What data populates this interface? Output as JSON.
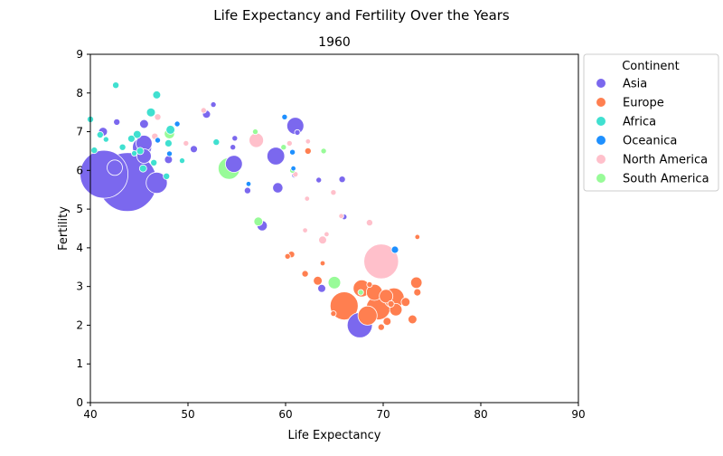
{
  "chart_data": {
    "type": "scatter",
    "title": "Life Expectancy and Fertility Over the Years",
    "subtitle": "1960",
    "xlabel": "Life Expectancy",
    "ylabel": "Fertility",
    "xlim": [
      40,
      90
    ],
    "ylim": [
      0,
      9
    ],
    "x_ticks": [
      "40",
      "50",
      "60",
      "70",
      "80",
      "90"
    ],
    "y_ticks": [
      "0",
      "1",
      "2",
      "3",
      "4",
      "5",
      "6",
      "7",
      "8",
      "9"
    ],
    "grid": false,
    "legend": {
      "title": "Continent",
      "placement": "outside-right",
      "entries": [
        {
          "name": "Asia",
          "color": "#7B68EE"
        },
        {
          "name": "Europe",
          "color": "#FF7F50"
        },
        {
          "name": "Africa",
          "color": "#40E0D0"
        },
        {
          "name": "Oceanica",
          "color": "#1E90FF"
        },
        {
          "name": "North America",
          "color": "#FFC0CB"
        },
        {
          "name": "South America",
          "color": "#98FB98"
        }
      ]
    },
    "series": [
      {
        "name": "Asia",
        "color": "#7B68EE",
        "points": [
          {
            "x": 43.8,
            "y": 5.7,
            "size": 660
          },
          {
            "x": 41.4,
            "y": 5.9,
            "size": 440
          },
          {
            "x": 42.5,
            "y": 6.07,
            "size": 45
          },
          {
            "x": 45.3,
            "y": 6.6,
            "size": 70
          },
          {
            "x": 45.5,
            "y": 6.7,
            "size": 50
          },
          {
            "x": 45.5,
            "y": 6.37,
            "size": 40
          },
          {
            "x": 46.8,
            "y": 5.68,
            "size": 85
          },
          {
            "x": 48.0,
            "y": 6.28,
            "size": 12
          },
          {
            "x": 54.7,
            "y": 6.17,
            "size": 55
          },
          {
            "x": 59.0,
            "y": 6.37,
            "size": 60
          },
          {
            "x": 61.0,
            "y": 7.15,
            "size": 55
          },
          {
            "x": 59.2,
            "y": 5.55,
            "size": 20
          },
          {
            "x": 57.6,
            "y": 4.57,
            "size": 20
          },
          {
            "x": 67.6,
            "y": 2.0,
            "size": 120
          },
          {
            "x": 63.7,
            "y": 2.95,
            "size": 12
          },
          {
            "x": 41.3,
            "y": 7.0,
            "size": 15
          },
          {
            "x": 42.7,
            "y": 7.25,
            "size": 8
          },
          {
            "x": 45.5,
            "y": 7.2,
            "size": 15
          },
          {
            "x": 51.9,
            "y": 7.45,
            "size": 12
          },
          {
            "x": 52.6,
            "y": 7.7,
            "size": 6
          },
          {
            "x": 50.6,
            "y": 6.55,
            "size": 10
          },
          {
            "x": 54.8,
            "y": 6.83,
            "size": 6
          },
          {
            "x": 56.1,
            "y": 5.48,
            "size": 8
          },
          {
            "x": 66.0,
            "y": 4.8,
            "size": 6
          },
          {
            "x": 63.4,
            "y": 5.75,
            "size": 6
          },
          {
            "x": 65.8,
            "y": 5.77,
            "size": 8
          },
          {
            "x": 60.9,
            "y": 5.88,
            "size": 6
          },
          {
            "x": 54.6,
            "y": 6.6,
            "size": 6
          },
          {
            "x": 61.2,
            "y": 6.98,
            "size": 6
          }
        ]
      },
      {
        "name": "Europe",
        "color": "#FF7F50",
        "points": [
          {
            "x": 66.0,
            "y": 2.5,
            "size": 150
          },
          {
            "x": 69.5,
            "y": 2.45,
            "size": 110
          },
          {
            "x": 71.1,
            "y": 2.7,
            "size": 80
          },
          {
            "x": 68.4,
            "y": 2.25,
            "size": 70
          },
          {
            "x": 67.8,
            "y": 2.95,
            "size": 55
          },
          {
            "x": 69.1,
            "y": 2.85,
            "size": 50
          },
          {
            "x": 70.3,
            "y": 2.75,
            "size": 35
          },
          {
            "x": 73.4,
            "y": 3.1,
            "size": 25
          },
          {
            "x": 71.3,
            "y": 2.4,
            "size": 30
          },
          {
            "x": 72.3,
            "y": 2.6,
            "size": 15
          },
          {
            "x": 73.0,
            "y": 2.15,
            "size": 15
          },
          {
            "x": 70.4,
            "y": 2.1,
            "size": 12
          },
          {
            "x": 69.8,
            "y": 1.95,
            "size": 8
          },
          {
            "x": 73.5,
            "y": 2.85,
            "size": 10
          },
          {
            "x": 63.3,
            "y": 3.15,
            "size": 15
          },
          {
            "x": 62.0,
            "y": 3.33,
            "size": 8
          },
          {
            "x": 60.6,
            "y": 3.83,
            "size": 8
          },
          {
            "x": 60.2,
            "y": 3.78,
            "size": 6
          },
          {
            "x": 63.8,
            "y": 3.6,
            "size": 5
          },
          {
            "x": 73.5,
            "y": 4.28,
            "size": 5
          },
          {
            "x": 62.3,
            "y": 6.5,
            "size": 8
          },
          {
            "x": 64.9,
            "y": 2.3,
            "size": 6
          },
          {
            "x": 68.6,
            "y": 3.05,
            "size": 6
          },
          {
            "x": 70.8,
            "y": 2.55,
            "size": 8
          }
        ]
      },
      {
        "name": "Africa",
        "color": "#40E0D0",
        "points": [
          {
            "x": 42.6,
            "y": 8.2,
            "size": 8
          },
          {
            "x": 46.8,
            "y": 7.95,
            "size": 12
          },
          {
            "x": 46.2,
            "y": 7.5,
            "size": 15
          },
          {
            "x": 48.2,
            "y": 7.05,
            "size": 15
          },
          {
            "x": 40.0,
            "y": 7.32,
            "size": 8
          },
          {
            "x": 41.0,
            "y": 6.92,
            "size": 8
          },
          {
            "x": 44.2,
            "y": 6.82,
            "size": 10
          },
          {
            "x": 44.8,
            "y": 6.93,
            "size": 12
          },
          {
            "x": 45.1,
            "y": 6.5,
            "size": 10
          },
          {
            "x": 48.0,
            "y": 6.7,
            "size": 10
          },
          {
            "x": 45.4,
            "y": 6.05,
            "size": 10
          },
          {
            "x": 46.5,
            "y": 6.2,
            "size": 8
          },
          {
            "x": 43.3,
            "y": 6.6,
            "size": 8
          },
          {
            "x": 40.4,
            "y": 6.52,
            "size": 8
          },
          {
            "x": 47.8,
            "y": 5.85,
            "size": 8
          },
          {
            "x": 49.4,
            "y": 6.25,
            "size": 6
          },
          {
            "x": 52.9,
            "y": 6.73,
            "size": 8
          },
          {
            "x": 41.6,
            "y": 6.8,
            "size": 6
          },
          {
            "x": 44.5,
            "y": 6.44,
            "size": 6
          }
        ]
      },
      {
        "name": "Oceanica",
        "color": "#1E90FF",
        "points": [
          {
            "x": 71.2,
            "y": 3.95,
            "size": 10
          },
          {
            "x": 48.9,
            "y": 7.2,
            "size": 6
          },
          {
            "x": 46.9,
            "y": 6.78,
            "size": 6
          },
          {
            "x": 59.9,
            "y": 7.38,
            "size": 6
          },
          {
            "x": 60.7,
            "y": 6.47,
            "size": 6
          },
          {
            "x": 60.8,
            "y": 6.05,
            "size": 5
          },
          {
            "x": 56.2,
            "y": 5.65,
            "size": 5
          },
          {
            "x": 48.1,
            "y": 6.43,
            "size": 6
          }
        ]
      },
      {
        "name": "North America",
        "color": "#FFC0CB",
        "points": [
          {
            "x": 69.8,
            "y": 3.65,
            "size": 230
          },
          {
            "x": 57.0,
            "y": 6.78,
            "size": 40
          },
          {
            "x": 63.8,
            "y": 4.2,
            "size": 12
          },
          {
            "x": 68.6,
            "y": 4.65,
            "size": 8
          },
          {
            "x": 64.9,
            "y": 5.43,
            "size": 6
          },
          {
            "x": 65.7,
            "y": 4.82,
            "size": 5
          },
          {
            "x": 62.2,
            "y": 5.27,
            "size": 5
          },
          {
            "x": 62.3,
            "y": 6.75,
            "size": 5
          },
          {
            "x": 61.0,
            "y": 5.9,
            "size": 6
          },
          {
            "x": 60.4,
            "y": 6.7,
            "size": 6
          },
          {
            "x": 51.6,
            "y": 7.55,
            "size": 6
          },
          {
            "x": 46.9,
            "y": 7.38,
            "size": 8
          },
          {
            "x": 46.6,
            "y": 6.88,
            "size": 8
          },
          {
            "x": 49.8,
            "y": 6.7,
            "size": 6
          },
          {
            "x": 64.2,
            "y": 4.35,
            "size": 5
          },
          {
            "x": 62.0,
            "y": 4.45,
            "size": 5
          }
        ]
      },
      {
        "name": "South America",
        "color": "#98FB98",
        "points": [
          {
            "x": 54.2,
            "y": 6.05,
            "size": 90
          },
          {
            "x": 48.1,
            "y": 6.95,
            "size": 20
          },
          {
            "x": 57.2,
            "y": 4.68,
            "size": 15
          },
          {
            "x": 65.0,
            "y": 3.1,
            "size": 30
          },
          {
            "x": 63.9,
            "y": 6.5,
            "size": 6
          },
          {
            "x": 59.8,
            "y": 6.6,
            "size": 6
          },
          {
            "x": 67.7,
            "y": 2.85,
            "size": 6
          },
          {
            "x": 56.9,
            "y": 7.0,
            "size": 6
          },
          {
            "x": 60.7,
            "y": 6.0,
            "size": 6
          }
        ]
      }
    ]
  }
}
